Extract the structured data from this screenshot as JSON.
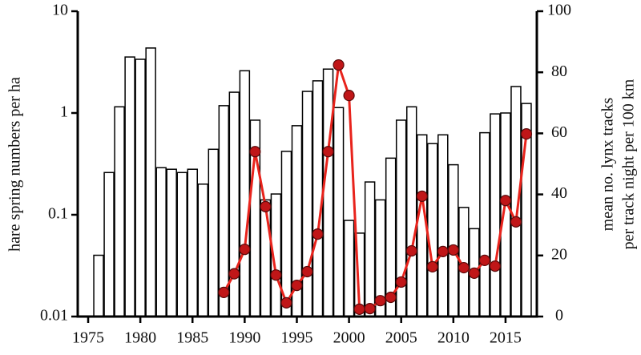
{
  "chart_data": {
    "type": "bar",
    "x": [
      1976,
      1977,
      1978,
      1979,
      1980,
      1981,
      1982,
      1983,
      1984,
      1985,
      1986,
      1987,
      1988,
      1989,
      1990,
      1991,
      1992,
      1993,
      1994,
      1995,
      1996,
      1997,
      1998,
      1999,
      2000,
      2001,
      2002,
      2003,
      2004,
      2005,
      2006,
      2007,
      2008,
      2009,
      2010,
      2011,
      2012,
      2013,
      2014,
      2015,
      2016,
      2017
    ],
    "xlim": [
      1974,
      2018
    ],
    "xticks": [
      1975,
      1980,
      1985,
      1990,
      1995,
      2000,
      2005,
      2010,
      2015
    ],
    "ylabel": "hare spring numbers per ha",
    "ylim": [
      0.01,
      10
    ],
    "yticks": [
      0.01,
      0.1,
      1,
      10
    ],
    "ylog": true,
    "y2label": [
      "mean no. lynx tracks",
      "per track night per 100 km"
    ],
    "y2lim": [
      0,
      100
    ],
    "y2ticks": [
      0,
      20,
      40,
      60,
      80,
      100
    ],
    "series": [
      {
        "type": "bar",
        "color": "#ffffff",
        "edge": "#000000",
        "values": [
          0.04,
          0.26,
          1.15,
          3.55,
          3.37,
          4.35,
          0.29,
          0.28,
          0.26,
          0.28,
          0.2,
          0.44,
          1.18,
          1.6,
          2.6,
          0.85,
          0.14,
          0.16,
          0.42,
          0.75,
          1.63,
          2.07,
          2.7,
          1.13,
          0.088,
          0.066,
          0.21,
          0.14,
          0.36,
          0.85,
          1.15,
          0.61,
          0.5,
          0.61,
          0.31,
          0.118,
          0.073,
          0.64,
          0.98,
          1.0,
          1.82,
          1.24
        ]
      },
      {
        "type": "line",
        "axis": "y2",
        "color": "#e8231c",
        "marker": "#c01618",
        "values": [
          null,
          null,
          null,
          null,
          null,
          null,
          null,
          null,
          null,
          null,
          null,
          null,
          7.9,
          14,
          22,
          54,
          36,
          13.6,
          4.5,
          10.2,
          14.7,
          27,
          54,
          82.4,
          72.4,
          2.4,
          2.6,
          5.2,
          6.3,
          11.3,
          21.5,
          39.4,
          16.3,
          21.3,
          21.8,
          16,
          14.2,
          18.4,
          16.5,
          38,
          31,
          59.8
        ]
      }
    ]
  }
}
